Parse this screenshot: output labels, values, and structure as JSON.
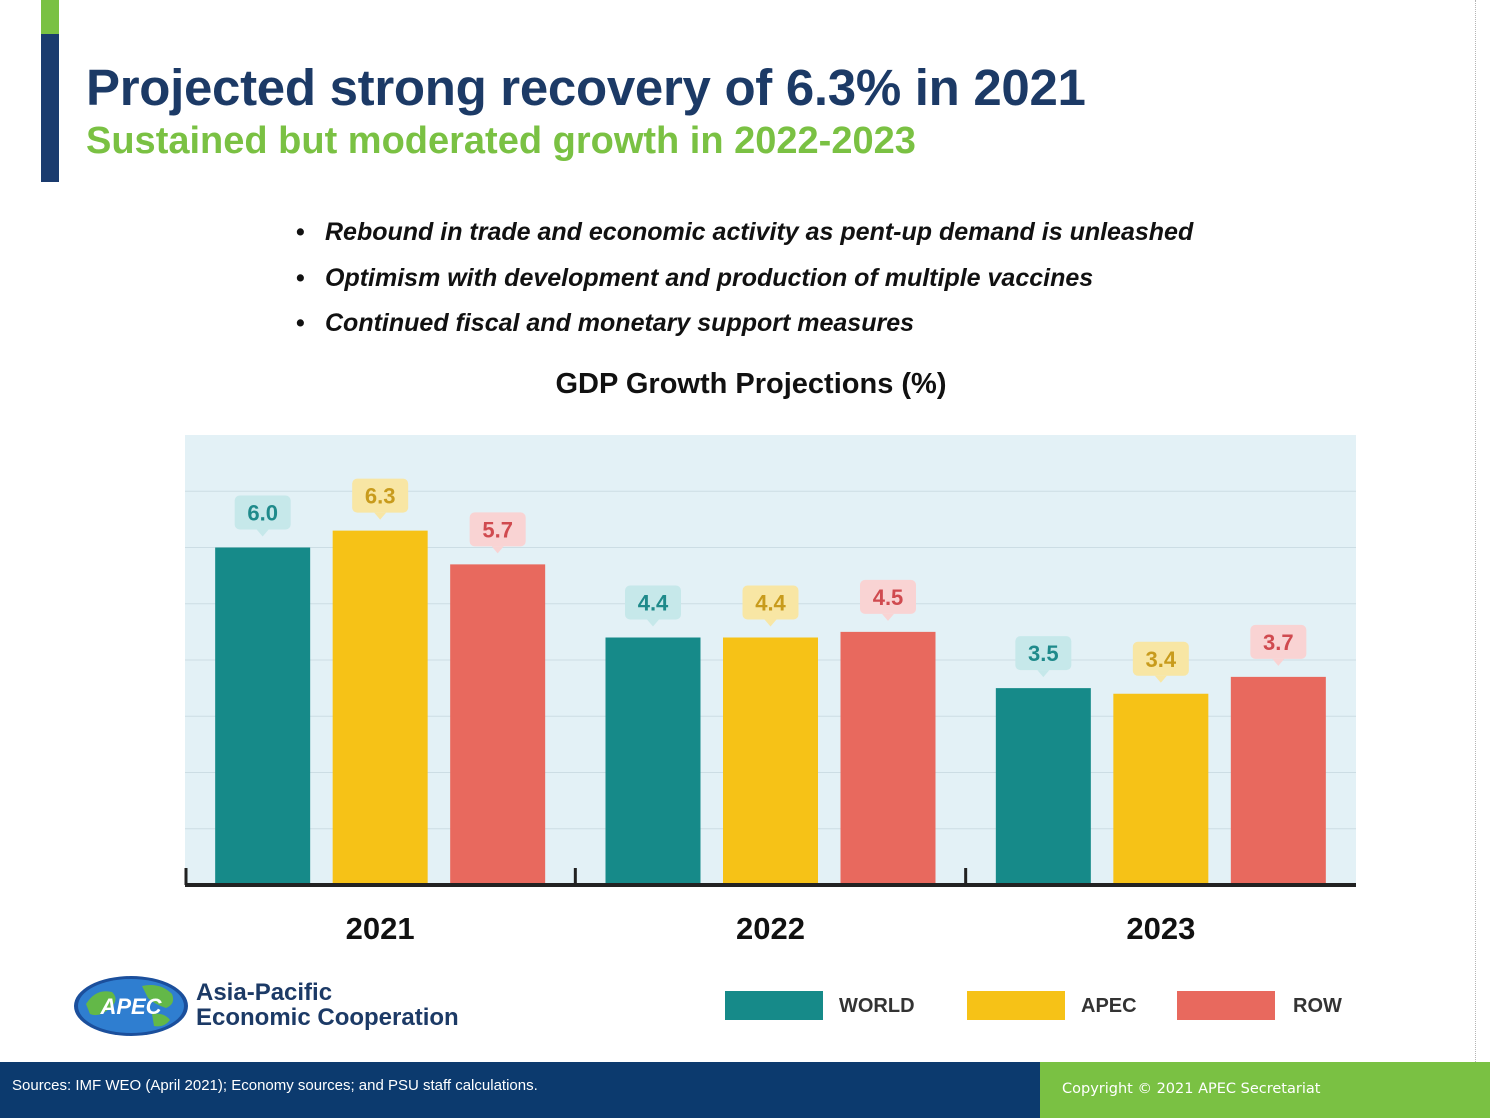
{
  "slide": {
    "title": "Projected strong recovery of 6.3% in 2021",
    "subtitle": "Sustained but moderated growth in 2022-2023",
    "bullets": [
      "Rebound in trade and economic activity as pent-up demand is unleashed",
      "Optimism with development and production of multiple vaccines",
      "Continued fiscal and monetary support measures"
    ],
    "bullet_marker": "•"
  },
  "colors": {
    "title": "#1c3a66",
    "accent_green": "#7ac143",
    "footer_blue": "#0c3a6e",
    "plot_background": "#e3f1f6"
  },
  "chart_data": {
    "type": "bar",
    "title": "GDP Growth Projections (%)",
    "categories": [
      "2021",
      "2022",
      "2023"
    ],
    "series": [
      {
        "name": "WORLD",
        "color": "#168a89",
        "label_bg": "#c6e8ea",
        "label_color": "#1f8a8b",
        "values": [
          6.0,
          4.4,
          3.5
        ]
      },
      {
        "name": "APEC",
        "color": "#f6c217",
        "label_bg": "#f8e6a4",
        "label_color": "#c89b1c",
        "values": [
          6.3,
          4.4,
          3.4
        ]
      },
      {
        "name": "ROW",
        "color": "#e8695e",
        "label_bg": "#f9d3d3",
        "label_color": "#d04a4f",
        "values": [
          5.7,
          4.5,
          3.7
        ]
      }
    ],
    "ylim": [
      0,
      8
    ],
    "grid": true,
    "legend_position": "bottom-right"
  },
  "logo": {
    "badge_text": "APEC",
    "name_line1": "Asia-Pacific",
    "name_line2": "Economic Cooperation"
  },
  "footer": {
    "sources": "Sources: IMF WEO (April 2021); Economy sources; and PSU staff calculations.",
    "copyright": "Copyright © 2021 APEC Secretariat"
  }
}
